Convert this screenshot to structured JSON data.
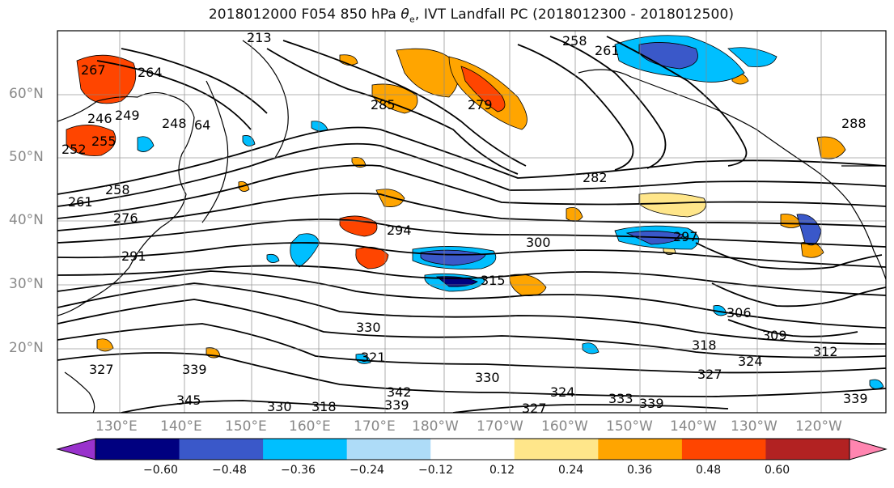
{
  "title_main": "2018012000 F054 850 hPa ",
  "title_symbol": "θ",
  "title_sub": "e",
  "title_tail": ", IVT Landfall PC (2018012300 - 2018012500)",
  "lat_labels": [
    "60°N",
    "50°N",
    "40°N",
    "30°N",
    "20°N"
  ],
  "lon_labels": [
    "130°E",
    "140°E",
    "150°E",
    "160°E",
    "170°E",
    "180°W",
    "170°W",
    "160°W",
    "150°W",
    "140°W",
    "130°W",
    "120°W"
  ],
  "colorbar": {
    "colors": [
      "#9932cc",
      "#000080",
      "#3a58c9",
      "#00bfff",
      "#aedcf8",
      "#ffffff",
      "#ffe68a",
      "#ffa500",
      "#ff4500",
      "#b22222",
      "#ff85b0"
    ],
    "tick_labels": [
      "−0.60",
      "−0.48",
      "−0.36",
      "−0.24",
      "−0.12",
      "0.12",
      "0.24",
      "0.36",
      "0.48",
      "0.60"
    ]
  },
  "contour_labels": [
    "213",
    "258",
    "261",
    "64",
    "249",
    "246",
    "248",
    "264",
    "267",
    "252",
    "255",
    "285",
    "279",
    "282",
    "288",
    "261",
    "258",
    "276",
    "294",
    "300",
    "297",
    "291",
    "315",
    "306",
    "309",
    "312",
    "318",
    "324",
    "327",
    "330",
    "321",
    "330",
    "327",
    "339",
    "342",
    "345",
    "339",
    "330",
    "333",
    "339",
    "339",
    "324",
    "327",
    "318"
  ]
}
